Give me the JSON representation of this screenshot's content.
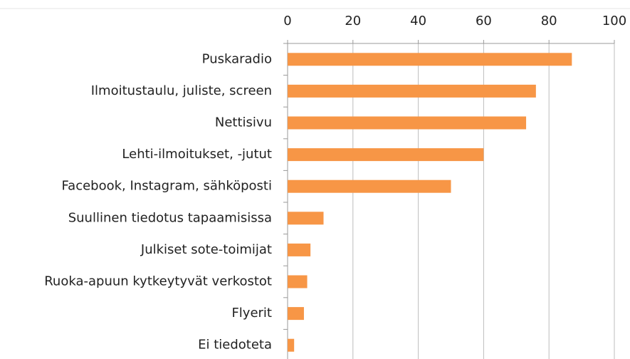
{
  "chart_data": {
    "type": "bar",
    "orientation": "horizontal",
    "categories": [
      "Puskaradio",
      "Ilmoitustaulu, juliste, screen",
      "Nettisivu",
      "Lehti-ilmoitukset, -jutut",
      "Facebook, Instagram, sähköposti",
      "Suullinen tiedotus tapaamisissa",
      "Julkiset sote-toimijat",
      "Ruoka-apuun kytkeytyvät verkostot",
      "Flyerit",
      "Ei tiedoteta"
    ],
    "values": [
      87,
      76,
      73,
      60,
      50,
      11,
      7,
      6,
      5,
      2
    ],
    "color": "#f79646",
    "xlim": [
      0,
      100
    ],
    "xticks": [
      0,
      20,
      40,
      60,
      80,
      100
    ],
    "grid": true
  }
}
